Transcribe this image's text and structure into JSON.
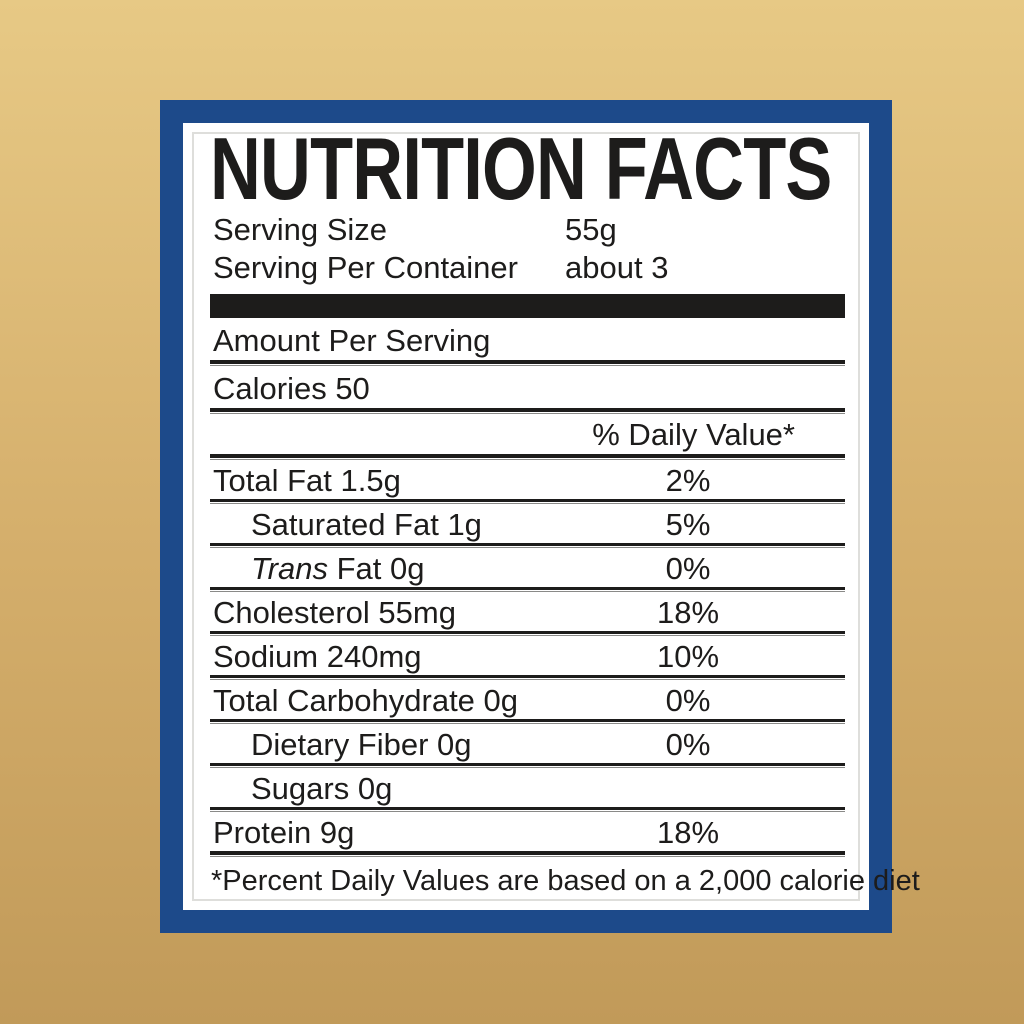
{
  "label": {
    "title": "NUTRITION FACTS",
    "serving": [
      {
        "name": "Serving Size",
        "value": "55g"
      },
      {
        "name": "Serving Per Container",
        "value": "about 3"
      }
    ],
    "amount_per_serving": "Amount Per Serving",
    "calories": "Calories 50",
    "daily_value_header": "% Daily Value*",
    "rows": [
      {
        "name": "Total Fat 1.5g",
        "percent": "2%",
        "indent": false
      },
      {
        "name": "Saturated Fat 1g",
        "percent": "5%",
        "indent": true
      },
      {
        "italic_prefix": "Trans",
        "name": " Fat 0g",
        "percent": "0%",
        "indent": true
      },
      {
        "name": "Cholesterol 55mg",
        "percent": "18%",
        "indent": false
      },
      {
        "name": "Sodium 240mg",
        "percent": "10%",
        "indent": false
      },
      {
        "name": "Total Carbohydrate 0g",
        "percent": "0%",
        "indent": false
      },
      {
        "name": "Dietary Fiber 0g",
        "percent": "0%",
        "indent": true
      },
      {
        "name": "Sugars 0g",
        "percent": "",
        "indent": true
      },
      {
        "name": "Protein 9g",
        "percent": "18%",
        "indent": false,
        "heavy_rule": true
      }
    ],
    "footnote": "*Percent Daily Values are based on a 2,000 calorie diet"
  },
  "colors": {
    "frame_blue": "#1d4a8a",
    "gold_top": "#e7c985",
    "gold_mid": "#d5af6c",
    "gold_bottom": "#c19a59",
    "ink": "#1d1c1b",
    "panel_white": "#ffffff"
  }
}
